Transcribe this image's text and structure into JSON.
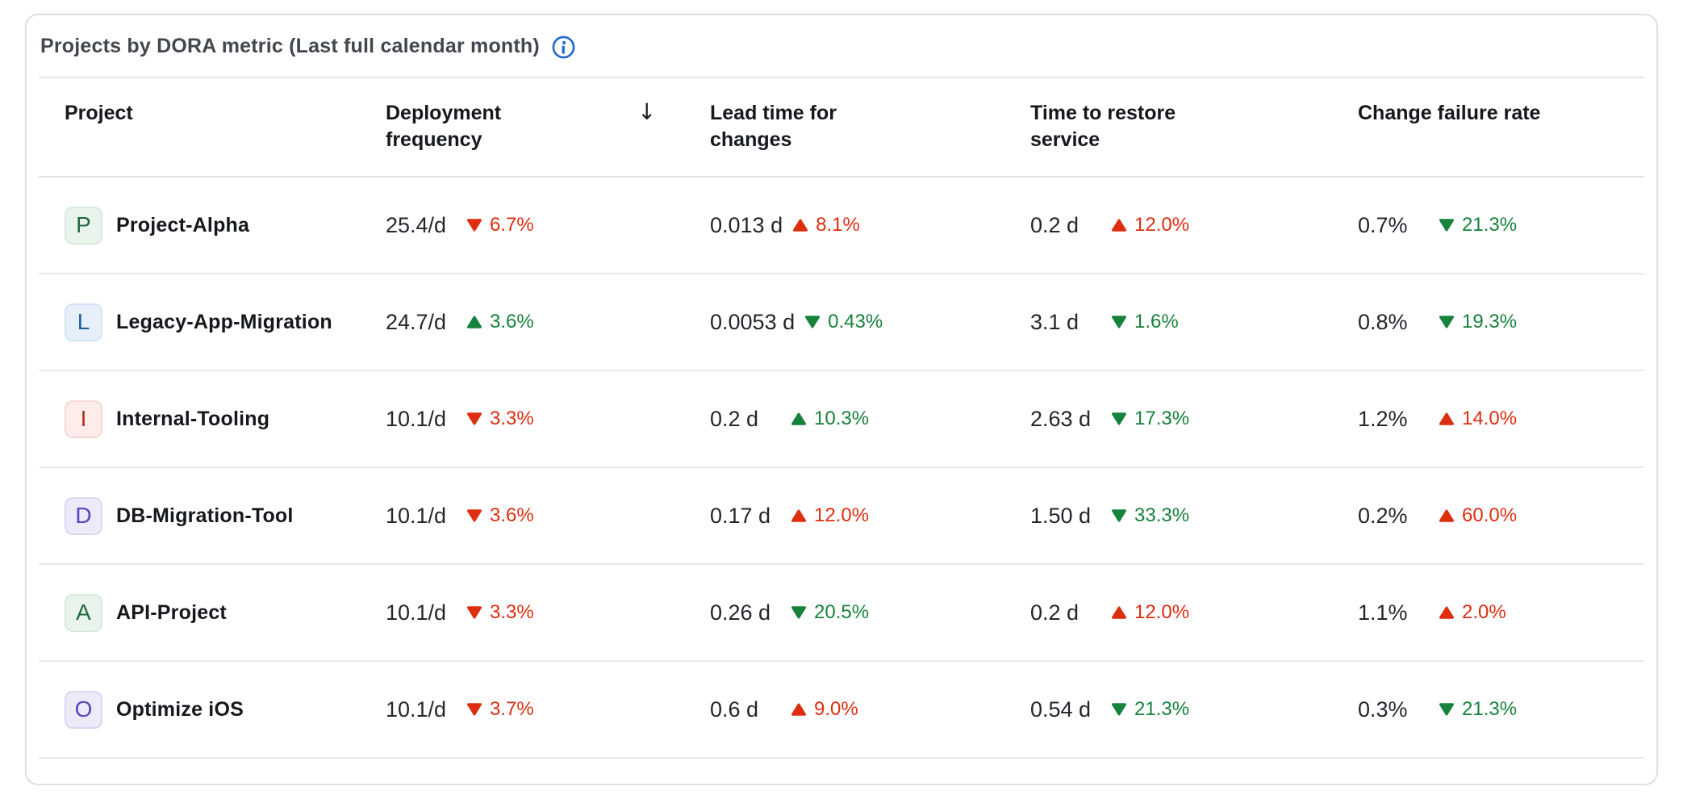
{
  "card": {
    "title": "Projects by DORA metric (Last full calendar month)"
  },
  "table": {
    "sort_indicator": "↓",
    "columns": [
      {
        "label": "Project"
      },
      {
        "label": "Deployment frequency",
        "sorted": "descending"
      },
      {
        "label": "Lead time for changes"
      },
      {
        "label": "Time to restore service"
      },
      {
        "label": "Change failure rate"
      }
    ],
    "rows": [
      {
        "project": {
          "name": "Project-Alpha",
          "initial": "P",
          "theme": "green"
        },
        "metrics": [
          {
            "value": "25.4/d",
            "delta": "6.7%",
            "direction": "down",
            "trend_color": "red"
          },
          {
            "value": "0.013 d",
            "delta": "8.1%",
            "direction": "up",
            "trend_color": "red"
          },
          {
            "value": "0.2 d",
            "delta": "12.0%",
            "direction": "up",
            "trend_color": "red"
          },
          {
            "value": "0.7%",
            "delta": "21.3%",
            "direction": "down",
            "trend_color": "green"
          }
        ]
      },
      {
        "project": {
          "name": "Legacy-App-Migration",
          "initial": "L",
          "theme": "blue"
        },
        "metrics": [
          {
            "value": "24.7/d",
            "delta": "3.6%",
            "direction": "up",
            "trend_color": "green"
          },
          {
            "value": "0.0053 d",
            "delta": "0.43%",
            "direction": "down",
            "trend_color": "green"
          },
          {
            "value": "3.1 d",
            "delta": "1.6%",
            "direction": "down",
            "trend_color": "green"
          },
          {
            "value": "0.8%",
            "delta": "19.3%",
            "direction": "down",
            "trend_color": "green"
          }
        ]
      },
      {
        "project": {
          "name": "Internal-Tooling",
          "initial": "I",
          "theme": "red"
        },
        "metrics": [
          {
            "value": "10.1/d",
            "delta": "3.3%",
            "direction": "down",
            "trend_color": "red"
          },
          {
            "value": "0.2 d",
            "delta": "10.3%",
            "direction": "up",
            "trend_color": "green"
          },
          {
            "value": "2.63 d",
            "delta": "17.3%",
            "direction": "down",
            "trend_color": "green"
          },
          {
            "value": "1.2%",
            "delta": "14.0%",
            "direction": "up",
            "trend_color": "red"
          }
        ]
      },
      {
        "project": {
          "name": "DB-Migration-Tool",
          "initial": "D",
          "theme": "purple"
        },
        "metrics": [
          {
            "value": "10.1/d",
            "delta": "3.6%",
            "direction": "down",
            "trend_color": "red"
          },
          {
            "value": "0.17 d",
            "delta": "12.0%",
            "direction": "up",
            "trend_color": "red"
          },
          {
            "value": "1.50 d",
            "delta": "33.3%",
            "direction": "down",
            "trend_color": "green"
          },
          {
            "value": "0.2%",
            "delta": "60.0%",
            "direction": "up",
            "trend_color": "red"
          }
        ]
      },
      {
        "project": {
          "name": "API-Project",
          "initial": "A",
          "theme": "green"
        },
        "metrics": [
          {
            "value": "10.1/d",
            "delta": "3.3%",
            "direction": "down",
            "trend_color": "red"
          },
          {
            "value": "0.26 d",
            "delta": "20.5%",
            "direction": "down",
            "trend_color": "green"
          },
          {
            "value": "0.2 d",
            "delta": "12.0%",
            "direction": "up",
            "trend_color": "red"
          },
          {
            "value": "1.1%",
            "delta": "2.0%",
            "direction": "up",
            "trend_color": "red"
          }
        ]
      },
      {
        "project": {
          "name": "Optimize iOS",
          "initial": "O",
          "theme": "purple"
        },
        "metrics": [
          {
            "value": "10.1/d",
            "delta": "3.7%",
            "direction": "down",
            "trend_color": "red"
          },
          {
            "value": "0.6 d",
            "delta": "9.0%",
            "direction": "up",
            "trend_color": "red"
          },
          {
            "value": "0.54 d",
            "delta": "21.3%",
            "direction": "down",
            "trend_color": "green"
          },
          {
            "value": "0.3%",
            "delta": "21.3%",
            "direction": "down",
            "trend_color": "green"
          }
        ]
      }
    ]
  },
  "colors": {
    "negative_red": "#dd2e10",
    "positive_green": "#17823c",
    "info_blue": "#2268d1",
    "avatar_themes": {
      "green": {
        "bg": "#e9f4ec",
        "border": "#d7eadd",
        "text": "#24693d"
      },
      "blue": {
        "bg": "#e7f0fa",
        "border": "#d3e4f5",
        "text": "#1a61ab"
      },
      "red": {
        "bg": "#fdecea",
        "border": "#f6d9d4",
        "text": "#aa3220"
      },
      "purple": {
        "bg": "#edeafa",
        "border": "#dcd7f2",
        "text": "#5345bd"
      }
    }
  }
}
